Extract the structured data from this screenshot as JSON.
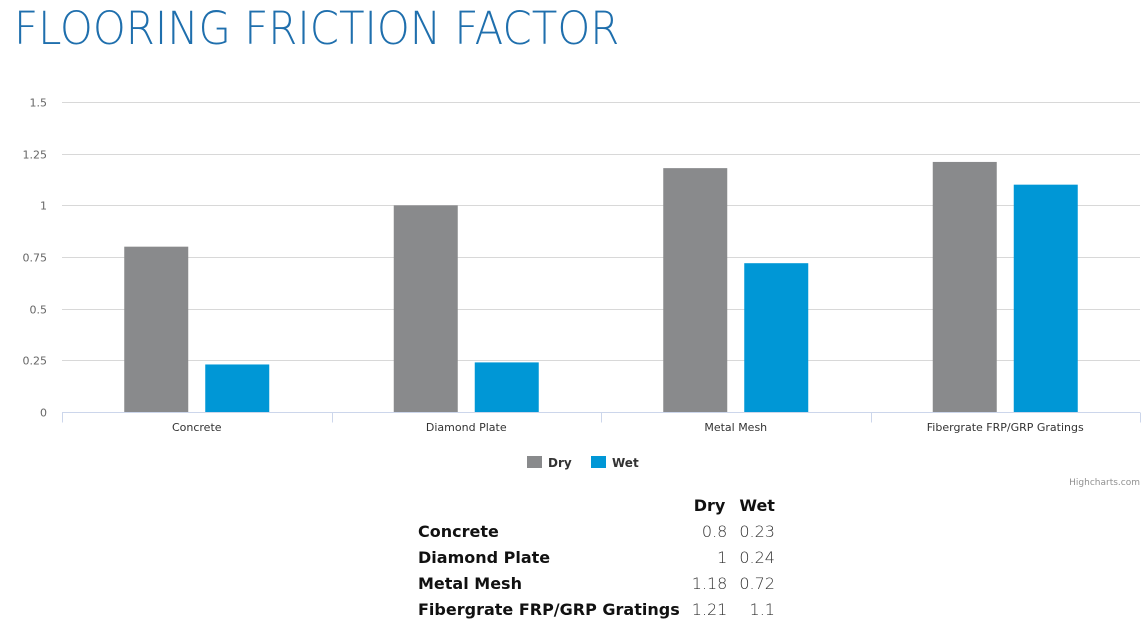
{
  "title": "FLOORING FRICTION FACTOR",
  "credits": "Highcharts.com",
  "colors": {
    "dry": "#898a8c",
    "wet": "#0097d6",
    "title": "#1f6fad",
    "grid": "#d8d8d8",
    "axis": "#ccd6eb"
  },
  "chart_data": {
    "type": "bar",
    "title": "",
    "xlabel": "",
    "ylabel": "",
    "categories": [
      "Concrete",
      "Diamond Plate",
      "Metal Mesh",
      "Fibergrate FRP/GRP Gratings"
    ],
    "series": [
      {
        "name": "Dry",
        "values": [
          0.8,
          1,
          1.18,
          1.21
        ],
        "color": "#898a8c"
      },
      {
        "name": "Wet",
        "values": [
          0.23,
          0.24,
          0.72,
          1.1
        ],
        "color": "#0097d6"
      }
    ],
    "ylim": [
      0,
      1.5
    ],
    "yticks": [
      "0",
      "0.25",
      "0.5",
      "0.75",
      "1",
      "1.25",
      "1.5"
    ],
    "grid": true,
    "legend": "bottom-center"
  },
  "table": {
    "headers": [
      "",
      "Dry",
      "Wet"
    ],
    "rows": [
      {
        "label": "Concrete",
        "dry": "0.8",
        "wet": "0.23"
      },
      {
        "label": "Diamond Plate",
        "dry": "1",
        "wet": "0.24"
      },
      {
        "label": "Metal Mesh",
        "dry": "1.18",
        "wet": "0.72"
      },
      {
        "label": "Fibergrate FRP/GRP Gratings",
        "dry": "1.21",
        "wet": "1.1"
      }
    ]
  }
}
